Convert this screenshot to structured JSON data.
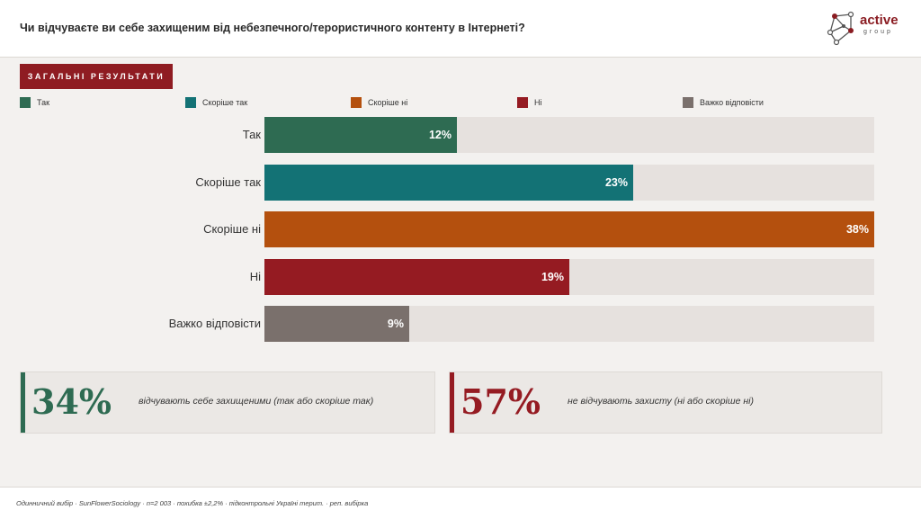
{
  "header": {
    "question": "Чи відчуваєте ви себе захищеним від небезпечного/терористичного контенту в Інтернеті?"
  },
  "logo": {
    "word": "active",
    "sub": "group"
  },
  "badge": "ЗАГАЛЬНІ РЕЗУЛЬТАТИ",
  "chart_data": {
    "type": "bar",
    "orientation": "horizontal",
    "categories": [
      "Так",
      "Скоріше так",
      "Скоріше ні",
      "Ні",
      "Важко відповісти"
    ],
    "values": [
      12,
      23,
      38,
      19,
      9
    ],
    "value_labels": [
      "12%",
      "23%",
      "38%",
      "19%",
      "9%"
    ],
    "colors": [
      "#2e6b52",
      "#137275",
      "#b4500e",
      "#951b22",
      "#7a706c"
    ],
    "xlim": [
      0,
      38
    ],
    "legend": [
      "Так",
      "Скоріше так",
      "Скоріше ні",
      "Ні",
      "Важко відповісти"
    ],
    "legend_position": "top",
    "title": "",
    "xlabel": "",
    "ylabel": "",
    "grid": false
  },
  "stats": [
    {
      "number": "34%",
      "text": "відчувають себе захищеними (так або скоріше так)",
      "color": "#2e6b52"
    },
    {
      "number": "57%",
      "text": "не відчувають захисту (ні або скоріше ні)",
      "color": "#951b22"
    }
  ],
  "footer": "Одинничний вибір · SunFlowerSociology · n=2 003 · похибка ±2,2% · підконтрольні Україні терит. · реп. вибірка"
}
